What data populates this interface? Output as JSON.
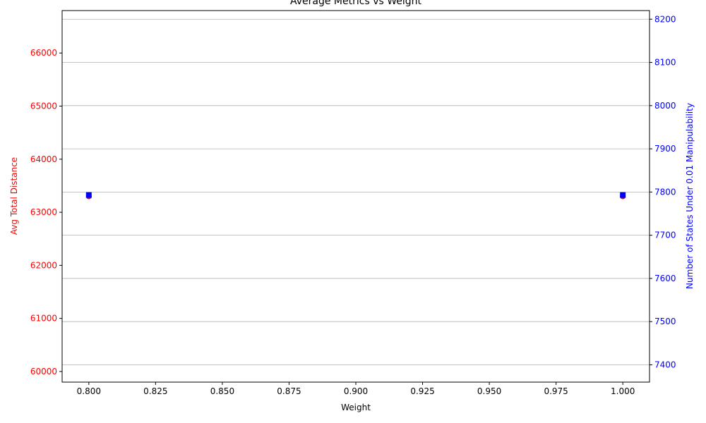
{
  "chart_data": {
    "type": "scatter",
    "title": "Average Metrics vs Weight",
    "xlabel": "Weight",
    "ylabel_left": "Avg Total Distance",
    "ylabel_right": "Number of States Under 0.01 Manipulability",
    "xlim": [
      0.79,
      1.01
    ],
    "ylim_left": [
      59800,
      66800
    ],
    "ylim_right": [
      7360,
      8220
    ],
    "x_ticks": [
      "0.800",
      "0.825",
      "0.850",
      "0.875",
      "0.900",
      "0.925",
      "0.950",
      "0.975",
      "1.000"
    ],
    "left_ticks": [
      "60000",
      "61000",
      "62000",
      "63000",
      "64000",
      "65000",
      "66000"
    ],
    "right_ticks": [
      "7400",
      "7500",
      "7600",
      "7700",
      "7800",
      "7900",
      "8000",
      "8100",
      "8200"
    ],
    "grid": "horizontal lines at right-axis ticks",
    "colors": {
      "left_axis": "#ff0000",
      "right_axis": "#0000ff",
      "grid": "#b0b0b0"
    },
    "series": [
      {
        "axis": "left",
        "color": "#ff0000",
        "marker": "o",
        "x": [
          0.8,
          1.0
        ],
        "y": [
          63300,
          63300
        ]
      },
      {
        "axis": "right",
        "color": "#0000ff",
        "marker": "s",
        "x": [
          0.8,
          1.0
        ],
        "y": [
          7793,
          7793
        ]
      }
    ]
  }
}
